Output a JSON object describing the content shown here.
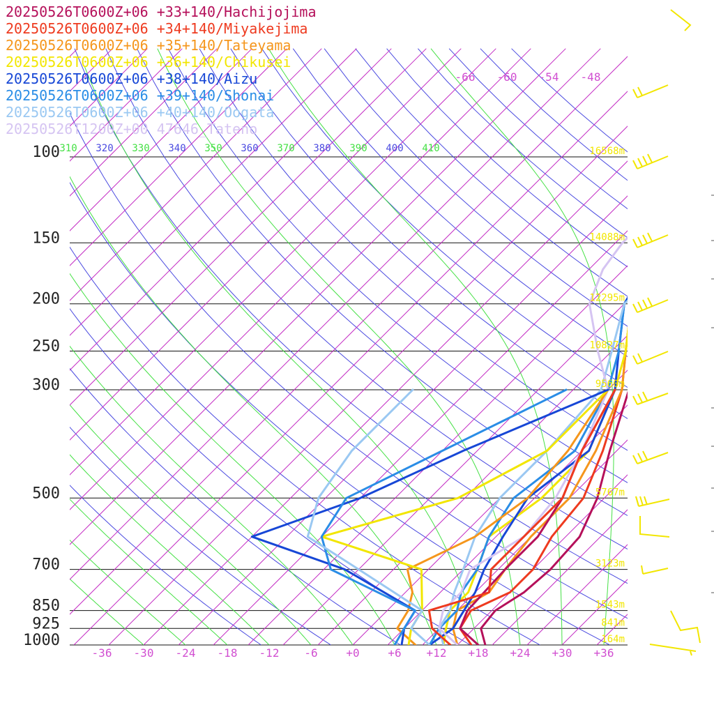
{
  "chart_data": {
    "type": "line",
    "subtype": "skew-T log-P sounding",
    "xlabel": "",
    "ylabel": "",
    "pressure_levels_hPa": [
      100,
      150,
      200,
      250,
      300,
      500,
      700,
      850,
      925,
      1000
    ],
    "pressure_labels": [
      "100",
      "150",
      "200",
      "250",
      "300",
      "500",
      "700",
      "850",
      "925",
      "1000"
    ],
    "height_labels": [
      "16568m",
      "14088m",
      "12295m",
      "10827m",
      "9560m",
      "5767m",
      "3123m",
      "1543m",
      "841m",
      "164m"
    ],
    "temperature_ticks": [
      "-36",
      "-30",
      "-24",
      "-18",
      "-12",
      "-6",
      "+0",
      "+6",
      "+12",
      "+18",
      "+24",
      "+30",
      "+36"
    ],
    "theta_labels": [
      "310",
      "320",
      "330",
      "340",
      "350",
      "360",
      "370",
      "380",
      "390",
      "400",
      "410"
    ],
    "mixing_ratio_labels": [
      "-66",
      "-60",
      "-54",
      "-48"
    ],
    "xlim": [
      -40,
      40
    ],
    "grid": true,
    "legend_placement": "top-left",
    "series": [
      {
        "name": "20250526T0600Z+06 +33+140/Hachijojima",
        "color": "#b5105a",
        "temperature": [
          [
            1000,
            19
          ],
          [
            925,
            16
          ],
          [
            850,
            15.5
          ],
          [
            780,
            17
          ],
          [
            700,
            17.5
          ],
          [
            600,
            17
          ],
          [
            500,
            14
          ],
          [
            400,
            9
          ],
          [
            300,
            3
          ],
          [
            250,
            -2
          ],
          [
            200,
            -8
          ],
          [
            170,
            -14
          ],
          [
            150,
            -14
          ],
          [
            130,
            -11
          ],
          [
            100,
            -4
          ],
          [
            80,
            6
          ],
          [
            60,
            20
          ]
        ]
      },
      {
        "name": "20250526T0600Z+06 +34+140/Miyakejima",
        "color": "#ee3a1f",
        "temperature": [
          [
            1000,
            17
          ],
          [
            925,
            13
          ],
          [
            850,
            12
          ],
          [
            780,
            15
          ],
          [
            700,
            15
          ],
          [
            600,
            13
          ],
          [
            500,
            12
          ],
          [
            400,
            8
          ],
          [
            300,
            2
          ],
          [
            250,
            -3
          ],
          [
            200,
            -9
          ],
          [
            170,
            -14
          ],
          [
            150,
            -13
          ],
          [
            130,
            -10
          ],
          [
            100,
            -4
          ],
          [
            80,
            5
          ],
          [
            60,
            19
          ]
        ]
      },
      {
        "name": "20250526T0600Z+06 +35+140/Tateyama",
        "color": "#f5961c",
        "temperature": [
          [
            1000,
            15
          ],
          [
            925,
            12
          ],
          [
            850,
            10
          ],
          [
            780,
            12
          ],
          [
            700,
            11
          ],
          [
            600,
            10
          ],
          [
            500,
            10
          ],
          [
            400,
            7
          ],
          [
            300,
            2
          ],
          [
            250,
            -3
          ],
          [
            200,
            -9
          ],
          [
            170,
            -13
          ],
          [
            150,
            -13
          ],
          [
            130,
            -10
          ],
          [
            100,
            -4
          ],
          [
            80,
            5
          ],
          [
            60,
            18
          ]
        ]
      },
      {
        "name": "20250526T0600Z+06 +36+140/Chikusei",
        "color": "#f2e600",
        "temperature": [
          [
            1000,
            13
          ],
          [
            925,
            11
          ],
          [
            850,
            9
          ],
          [
            780,
            9
          ],
          [
            700,
            7
          ],
          [
            600,
            4
          ],
          [
            500,
            6
          ],
          [
            400,
            6
          ],
          [
            300,
            1
          ],
          [
            250,
            -3
          ],
          [
            200,
            -9
          ],
          [
            170,
            -13
          ],
          [
            150,
            -12
          ],
          [
            130,
            -8
          ],
          [
            100,
            -3
          ],
          [
            80,
            5
          ],
          [
            60,
            18
          ]
        ]
      },
      {
        "name": "20250526T0600Z+06 +38+140/Aizu",
        "color": "#1747d6",
        "temperature": [
          [
            1000,
            11
          ],
          [
            925,
            12
          ],
          [
            850,
            11
          ],
          [
            780,
            10
          ],
          [
            700,
            8
          ],
          [
            600,
            6
          ],
          [
            500,
            4
          ],
          [
            400,
            6
          ],
          [
            300,
            1
          ],
          [
            250,
            -4
          ],
          [
            200,
            -10
          ],
          [
            170,
            -12
          ],
          [
            150,
            -11
          ],
          [
            130,
            -8
          ],
          [
            100,
            -3
          ],
          [
            80,
            6
          ],
          [
            60,
            19
          ]
        ]
      },
      {
        "name": "20250526T0600Z+06 +39+140/Shonai",
        "color": "#2a8de6",
        "temperature": [
          [
            1000,
            11
          ],
          [
            925,
            10
          ],
          [
            850,
            10
          ],
          [
            780,
            8
          ],
          [
            700,
            7
          ],
          [
            600,
            4
          ],
          [
            500,
            2
          ],
          [
            400,
            4
          ],
          [
            300,
            0
          ],
          [
            250,
            -4
          ],
          [
            200,
            -10
          ],
          [
            170,
            -10
          ],
          [
            150,
            -8
          ],
          [
            130,
            -6
          ],
          [
            100,
            -2
          ],
          [
            80,
            6
          ],
          [
            60,
            19
          ]
        ]
      },
      {
        "name": "20250526T0600Z+06 +40+140/Oogata",
        "color": "#9ac8f2",
        "temperature": [
          [
            1000,
            13
          ],
          [
            925,
            10
          ],
          [
            850,
            9
          ],
          [
            780,
            7
          ],
          [
            700,
            5
          ],
          [
            600,
            2
          ],
          [
            500,
            0
          ],
          [
            400,
            0
          ],
          [
            300,
            -1
          ],
          [
            250,
            -5
          ],
          [
            200,
            -10
          ],
          [
            170,
            -9
          ],
          [
            150,
            -6
          ],
          [
            130,
            -4
          ],
          [
            100,
            0
          ],
          [
            80,
            7
          ],
          [
            60,
            20
          ]
        ]
      },
      {
        "name": "20250526T1200Z+00 47646_Tateno",
        "color": "#d5c4f2",
        "temperature": [
          [
            1000,
            15
          ],
          [
            925,
            10
          ],
          [
            850,
            8
          ],
          [
            780,
            8
          ],
          [
            700,
            6
          ],
          [
            600,
            9
          ],
          [
            500,
            8
          ],
          [
            400,
            5
          ],
          [
            300,
            0
          ],
          [
            250,
            -7
          ],
          [
            200,
            -15
          ],
          [
            170,
            -18
          ],
          [
            150,
            -19
          ],
          [
            130,
            -19
          ],
          [
            100,
            -16
          ]
        ]
      },
      {
        "name": "Hachijojima dewpoint",
        "color": "#b5105a",
        "dewpoint": [
          [
            1000,
            18
          ],
          [
            925,
            13
          ],
          [
            850,
            11.5
          ],
          [
            700,
            11
          ],
          [
            600,
            11
          ],
          [
            500,
            9
          ],
          [
            400,
            5
          ],
          [
            300,
            1
          ]
        ]
      },
      {
        "name": "Miyakejima dewpoint",
        "color": "#ee3a1f",
        "dewpoint": [
          [
            1000,
            14
          ],
          [
            925,
            9
          ],
          [
            850,
            6
          ],
          [
            780,
            12
          ],
          [
            700,
            9
          ],
          [
            600,
            9
          ],
          [
            500,
            9
          ],
          [
            400,
            5
          ],
          [
            300,
            1
          ]
        ]
      },
      {
        "name": "Tateyama dewpoint",
        "color": "#f5961c",
        "dewpoint": [
          [
            1000,
            9
          ],
          [
            925,
            4
          ],
          [
            850,
            3
          ],
          [
            780,
            1
          ],
          [
            700,
            -3
          ],
          [
            600,
            2
          ],
          [
            500,
            4
          ],
          [
            400,
            3
          ],
          [
            300,
            0
          ]
        ]
      },
      {
        "name": "Chikusei dewpoint",
        "color": "#f2e600",
        "dewpoint": [
          [
            1000,
            8
          ],
          [
            925,
            6
          ],
          [
            850,
            5
          ],
          [
            700,
            -1
          ],
          [
            600,
            -20
          ],
          [
            500,
            -6
          ],
          [
            400,
            0
          ],
          [
            300,
            0
          ]
        ]
      },
      {
        "name": "Aizu dewpoint",
        "color": "#1747d6",
        "dewpoint": [
          [
            1000,
            7
          ],
          [
            925,
            5
          ],
          [
            850,
            4
          ],
          [
            700,
            -12
          ],
          [
            600,
            -30
          ],
          [
            500,
            -20
          ],
          [
            400,
            -12
          ],
          [
            300,
            0
          ]
        ]
      },
      {
        "name": "Shonai dewpoint",
        "color": "#2a8de6",
        "dewpoint": [
          [
            1000,
            6
          ],
          [
            925,
            5
          ],
          [
            850,
            4
          ],
          [
            700,
            -14
          ],
          [
            600,
            -20
          ],
          [
            500,
            -22
          ],
          [
            400,
            -15
          ],
          [
            300,
            -6
          ]
        ]
      },
      {
        "name": "Oogata dewpoint",
        "color": "#9ac8f2",
        "dewpoint": [
          [
            1000,
            11
          ],
          [
            925,
            6
          ],
          [
            850,
            5
          ],
          [
            700,
            -10
          ],
          [
            600,
            -22
          ],
          [
            500,
            -26
          ],
          [
            400,
            -28
          ],
          [
            300,
            -28
          ]
        ]
      }
    ]
  }
}
